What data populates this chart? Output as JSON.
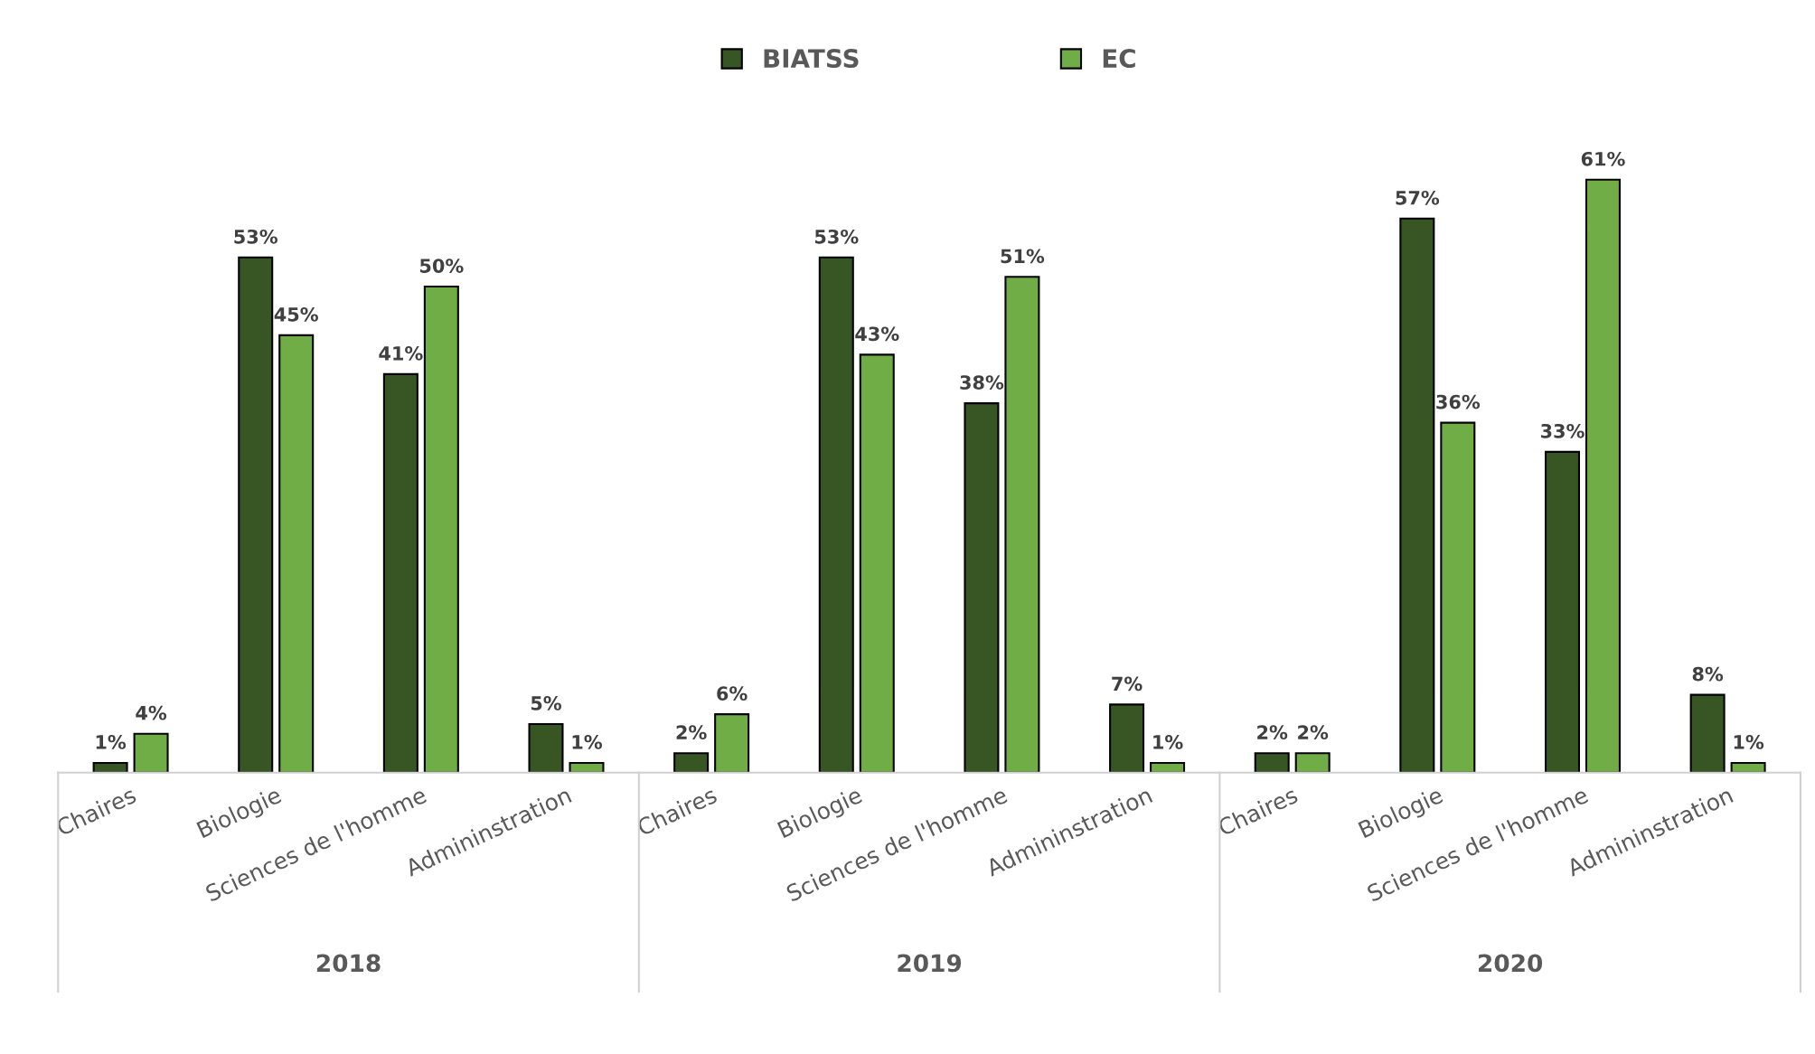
{
  "chart_data": {
    "type": "bar",
    "categories": [
      "Chaires",
      "Biologie",
      "Sciences de l'homme",
      "Admininstration",
      "Chaires",
      "Biologie",
      "Sciences de l'homme",
      "Admininstration",
      "Chaires",
      "Biologie",
      "Sciences de l'homme",
      "Admininstration"
    ],
    "series": [
      {
        "name": "BIATSS",
        "color": "#375623",
        "values": [
          1,
          53,
          41,
          5,
          2,
          53,
          38,
          7,
          2,
          57,
          33,
          8
        ],
        "value_labels": [
          "1%",
          "53%",
          "41%",
          "5%",
          "2%",
          "53%",
          "38%",
          "7%",
          "2%",
          "57%",
          "33%",
          "8%"
        ]
      },
      {
        "name": "EC",
        "color": "#70ad47",
        "values": [
          4,
          45,
          50,
          1,
          6,
          43,
          51,
          1,
          2,
          36,
          61,
          1
        ],
        "value_labels": [
          "4%",
          "45%",
          "50%",
          "1%",
          "6%",
          "43%",
          "51%",
          "1%",
          "2%",
          "36%",
          "61%",
          "1%"
        ]
      }
    ],
    "annotations": [
      "2018",
      "2019",
      "2020"
    ],
    "legend": "top",
    "grid": false
  }
}
